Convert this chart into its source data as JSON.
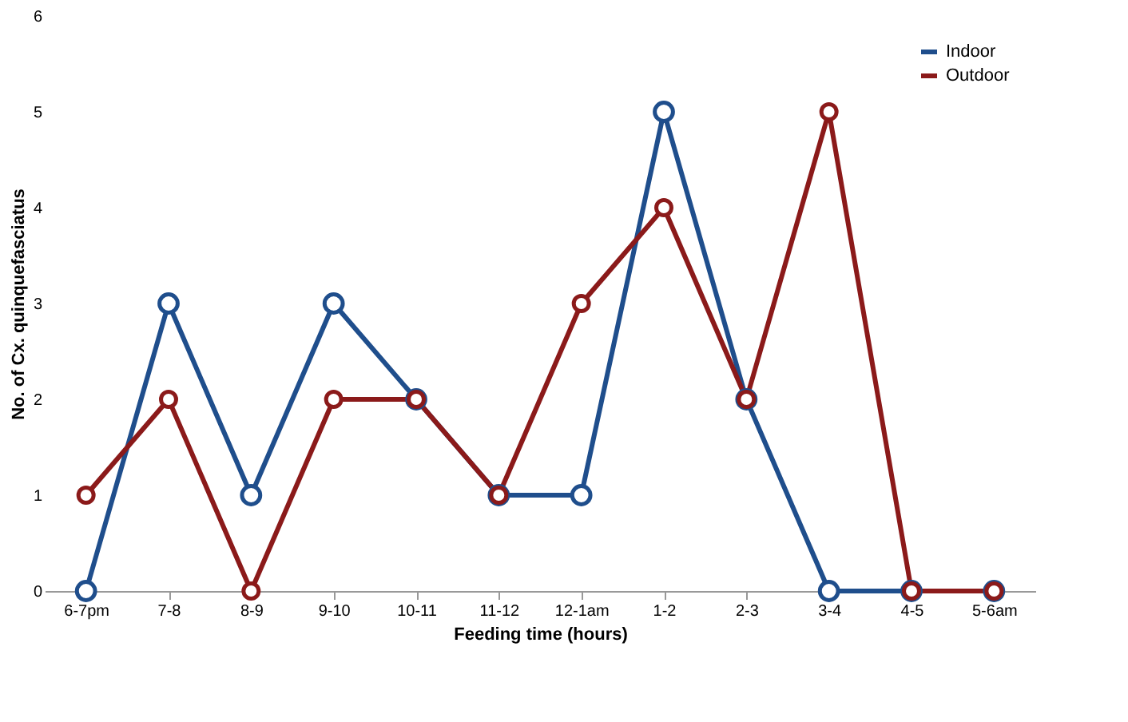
{
  "chart_data": {
    "type": "line",
    "categories": [
      "6-7pm",
      "7-8",
      "8-9",
      "9-10",
      "10-11",
      "11-12",
      "12-1am",
      "1-2",
      "2-3",
      "3-4",
      "4-5",
      "5-6am"
    ],
    "series": [
      {
        "name": "Indoor",
        "color": "#1f4e8c",
        "values": [
          0,
          3,
          1,
          3,
          2,
          1,
          1,
          5,
          2,
          0,
          0,
          0
        ]
      },
      {
        "name": "Outdoor",
        "color": "#8b1a1a",
        "values": [
          1,
          2,
          0,
          2,
          2,
          1,
          3,
          4,
          2,
          5,
          0,
          0
        ]
      }
    ],
    "xlabel": "Feeding time (hours)",
    "ylabel": "No. of Cx. quinquefasciatus",
    "ylim": [
      0,
      6
    ],
    "yticks": [
      0,
      1,
      2,
      3,
      4,
      5,
      6
    ],
    "grid": false,
    "legend": "top right",
    "marker": "circle",
    "line_style": "solid"
  }
}
